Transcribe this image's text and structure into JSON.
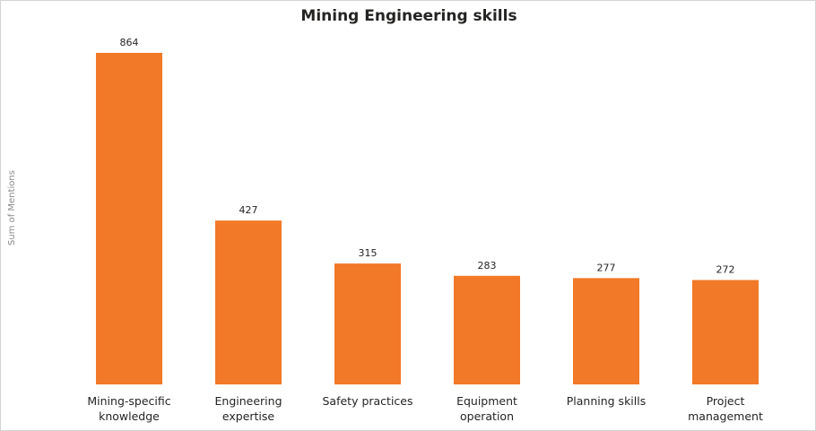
{
  "chart_data": {
    "type": "bar",
    "title": "Mining Engineering skills",
    "xlabel": "",
    "ylabel": "Sum of Mentions",
    "categories": [
      [
        "Mining-specific",
        "knowledge"
      ],
      [
        "Engineering",
        "expertise"
      ],
      [
        "Safety practices"
      ],
      [
        "Equipment",
        "operation"
      ],
      [
        "Planning skills"
      ],
      [
        "Project",
        "management"
      ]
    ],
    "values": [
      864,
      427,
      315,
      283,
      277,
      272
    ],
    "ylim": [
      0,
      900
    ],
    "bar_color": "#F27927",
    "grid": false,
    "legend": "none"
  }
}
